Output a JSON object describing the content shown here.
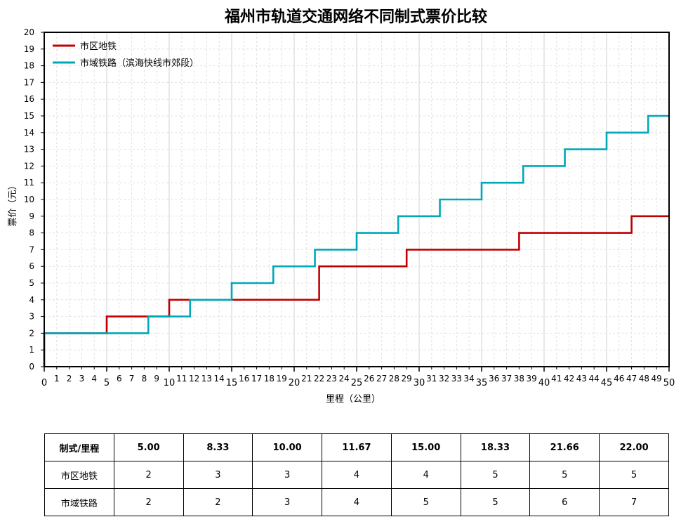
{
  "chart_data": {
    "type": "line",
    "step": true,
    "title": "福州市轨道交通网络不同制式票价比较",
    "xlabel": "里程（公里）",
    "ylabel": "票价（元）",
    "xlim": [
      0,
      50
    ],
    "ylim": [
      0,
      20
    ],
    "x_ticks_minor": [
      0,
      1,
      2,
      3,
      4,
      5,
      6,
      7,
      8,
      9,
      10,
      11,
      12,
      13,
      14,
      15,
      16,
      17,
      18,
      19,
      20,
      21,
      22,
      23,
      24,
      25,
      26,
      27,
      28,
      29,
      30,
      31,
      32,
      33,
      34,
      35,
      36,
      37,
      38,
      39,
      40,
      41,
      42,
      43,
      44,
      45,
      46,
      47,
      48,
      49,
      50
    ],
    "x_ticks_major": [
      0,
      5,
      10,
      15,
      20,
      25,
      30,
      35,
      40,
      45,
      50
    ],
    "y_ticks": [
      0,
      1,
      2,
      3,
      4,
      5,
      6,
      7,
      8,
      9,
      10,
      11,
      12,
      13,
      14,
      15,
      16,
      17,
      18,
      19,
      20
    ],
    "grid": true,
    "legend": "top-left",
    "series": [
      {
        "name": "市区地铁",
        "color": "#c00000",
        "x": [
          0,
          5,
          10,
          11.67,
          22,
          29,
          38,
          47,
          50
        ],
        "y": [
          2,
          3,
          4,
          4,
          6,
          7,
          8,
          9,
          9
        ]
      },
      {
        "name": "市域铁路（滨海快线市郊段）",
        "color": "#00a8b8",
        "x": [
          0,
          8.33,
          11.67,
          15,
          18.33,
          21.66,
          25,
          28.33,
          31.66,
          35,
          38.33,
          41.66,
          45,
          48.33,
          50
        ],
        "y": [
          2,
          3,
          4,
          5,
          6,
          7,
          8,
          9,
          10,
          11,
          12,
          13,
          14,
          15,
          15
        ]
      }
    ]
  },
  "table": {
    "header": [
      "制式/里程",
      "5.00",
      "8.33",
      "10.00",
      "11.67",
      "15.00",
      "18.33",
      "21.66",
      "22.00"
    ],
    "rows": [
      [
        "市区地铁",
        "2",
        "3",
        "3",
        "4",
        "4",
        "5",
        "5",
        "5"
      ],
      [
        "市域铁路",
        "2",
        "2",
        "3",
        "4",
        "5",
        "5",
        "6",
        "7"
      ]
    ]
  }
}
